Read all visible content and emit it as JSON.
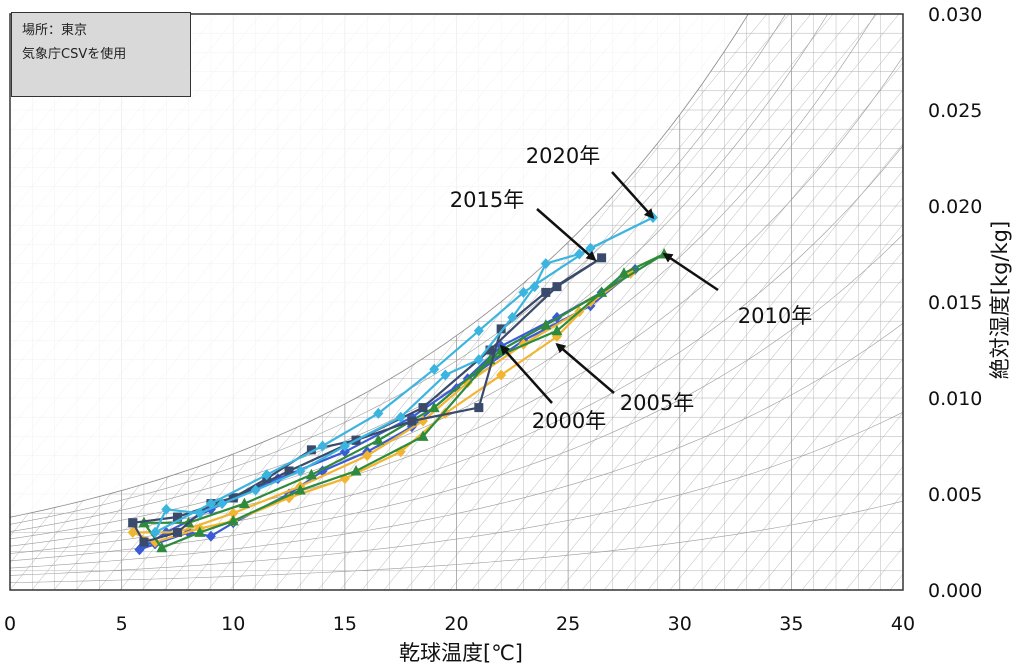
{
  "info_box": {
    "line1": "場所：東京",
    "line2": "気象庁CSVを使用"
  },
  "chart_data": {
    "type": "line",
    "xlabel": "乾球温度[℃]",
    "ylabel": "絶対湿度[kg/kg]",
    "xlim": [
      0,
      40
    ],
    "ylim": [
      0,
      0.03
    ],
    "x_ticks": [
      "0",
      "5",
      "10",
      "15",
      "20",
      "25",
      "30",
      "35",
      "40"
    ],
    "y_ticks": [
      "0.000",
      "0.005",
      "0.010",
      "0.015",
      "0.020",
      "0.025",
      "0.030"
    ],
    "series": [
      {
        "name": "2000年",
        "color": "#3b5bd6",
        "marker": "diamond",
        "points": [
          [
            5.8,
            0.0021
          ],
          [
            6.5,
            0.0024
          ],
          [
            8.0,
            0.003
          ],
          [
            9.0,
            0.0028
          ],
          [
            10.0,
            0.0035
          ],
          [
            12.5,
            0.005
          ],
          [
            14.0,
            0.0062
          ],
          [
            16.0,
            0.0072
          ],
          [
            18.0,
            0.0085
          ],
          [
            20.0,
            0.0105
          ],
          [
            22.0,
            0.0127
          ],
          [
            24.5,
            0.0142
          ],
          [
            26.5,
            0.0155
          ],
          [
            28.0,
            0.0167
          ],
          [
            26.0,
            0.0148
          ],
          [
            23.0,
            0.013
          ],
          [
            20.5,
            0.011
          ],
          [
            18.0,
            0.009
          ],
          [
            15.0,
            0.0072
          ],
          [
            12.0,
            0.0058
          ],
          [
            9.0,
            0.0042
          ],
          [
            7.0,
            0.003
          ],
          [
            5.8,
            0.0021
          ]
        ]
      },
      {
        "name": "2005年",
        "color": "#f2b531",
        "marker": "diamond",
        "points": [
          [
            5.5,
            0.003
          ],
          [
            6.5,
            0.0025
          ],
          [
            8.5,
            0.0032
          ],
          [
            10.0,
            0.0036
          ],
          [
            12.5,
            0.0048
          ],
          [
            15.0,
            0.0058
          ],
          [
            17.5,
            0.0072
          ],
          [
            19.5,
            0.0092
          ],
          [
            22.0,
            0.0112
          ],
          [
            24.5,
            0.0132
          ],
          [
            26.0,
            0.015
          ],
          [
            27.8,
            0.0165
          ],
          [
            25.5,
            0.0145
          ],
          [
            23.0,
            0.0128
          ],
          [
            20.5,
            0.0108
          ],
          [
            18.5,
            0.0088
          ],
          [
            16.0,
            0.007
          ],
          [
            13.0,
            0.0054
          ],
          [
            10.0,
            0.004
          ],
          [
            7.5,
            0.003
          ],
          [
            5.5,
            0.003
          ]
        ]
      },
      {
        "name": "2010年",
        "color": "#2e8b3c",
        "marker": "triangle",
        "points": [
          [
            6.0,
            0.0035
          ],
          [
            6.8,
            0.0022
          ],
          [
            8.5,
            0.003
          ],
          [
            10.0,
            0.0036
          ],
          [
            13.0,
            0.0052
          ],
          [
            15.5,
            0.0062
          ],
          [
            18.5,
            0.008
          ],
          [
            21.5,
            0.012
          ],
          [
            24.5,
            0.0135
          ],
          [
            27.5,
            0.0165
          ],
          [
            29.3,
            0.0175
          ],
          [
            26.5,
            0.0155
          ],
          [
            24.0,
            0.0138
          ],
          [
            22.0,
            0.0125
          ],
          [
            19.0,
            0.0095
          ],
          [
            16.5,
            0.0078
          ],
          [
            13.5,
            0.006
          ],
          [
            10.5,
            0.0045
          ],
          [
            8.0,
            0.0035
          ],
          [
            6.0,
            0.0035
          ]
        ]
      },
      {
        "name": "2015年",
        "color": "#3a4a6b",
        "marker": "square",
        "points": [
          [
            5.5,
            0.0035
          ],
          [
            6.0,
            0.0025
          ],
          [
            7.5,
            0.003
          ],
          [
            9.0,
            0.0045
          ],
          [
            10.0,
            0.0048
          ],
          [
            11.5,
            0.0058
          ],
          [
            13.5,
            0.0073
          ],
          [
            15.5,
            0.0078
          ],
          [
            18.0,
            0.0088
          ],
          [
            21.0,
            0.0095
          ],
          [
            22.0,
            0.0136
          ],
          [
            24.0,
            0.0155
          ],
          [
            26.5,
            0.0173
          ],
          [
            24.5,
            0.0158
          ],
          [
            21.5,
            0.0125
          ],
          [
            18.5,
            0.0095
          ],
          [
            15.5,
            0.0078
          ],
          [
            12.5,
            0.0062
          ],
          [
            10.0,
            0.0048
          ],
          [
            7.5,
            0.0038
          ],
          [
            5.5,
            0.0035
          ]
        ]
      },
      {
        "name": "2020年",
        "color": "#3bb5e0",
        "marker": "diamond",
        "points": [
          [
            6.5,
            0.003
          ],
          [
            7.0,
            0.0042
          ],
          [
            8.5,
            0.004
          ],
          [
            9.5,
            0.0045
          ],
          [
            11.0,
            0.0052
          ],
          [
            13.0,
            0.0062
          ],
          [
            15.0,
            0.0075
          ],
          [
            17.5,
            0.009
          ],
          [
            19.5,
            0.0112
          ],
          [
            21.0,
            0.012
          ],
          [
            22.5,
            0.0142
          ],
          [
            23.5,
            0.0158
          ],
          [
            24.0,
            0.017
          ],
          [
            25.5,
            0.0175
          ],
          [
            28.8,
            0.0194
          ],
          [
            26.0,
            0.0178
          ],
          [
            23.0,
            0.0155
          ],
          [
            21.0,
            0.0135
          ],
          [
            19.0,
            0.0115
          ],
          [
            16.5,
            0.0092
          ],
          [
            14.0,
            0.0075
          ],
          [
            11.5,
            0.006
          ],
          [
            9.0,
            0.0045
          ],
          [
            6.5,
            0.003
          ]
        ]
      }
    ],
    "annotations": [
      {
        "label": "2020年",
        "point": [
          28.8,
          0.0194
        ]
      },
      {
        "label": "2015年",
        "point": [
          26.2,
          0.0172
        ]
      },
      {
        "label": "2010年",
        "point": [
          29.3,
          0.0175
        ]
      },
      {
        "label": "2000年",
        "point": [
          22.0,
          0.0127
        ]
      },
      {
        "label": "2005年",
        "point": [
          24.5,
          0.0128
        ]
      }
    ],
    "background": "psychrometric-chart",
    "legend": "none"
  }
}
